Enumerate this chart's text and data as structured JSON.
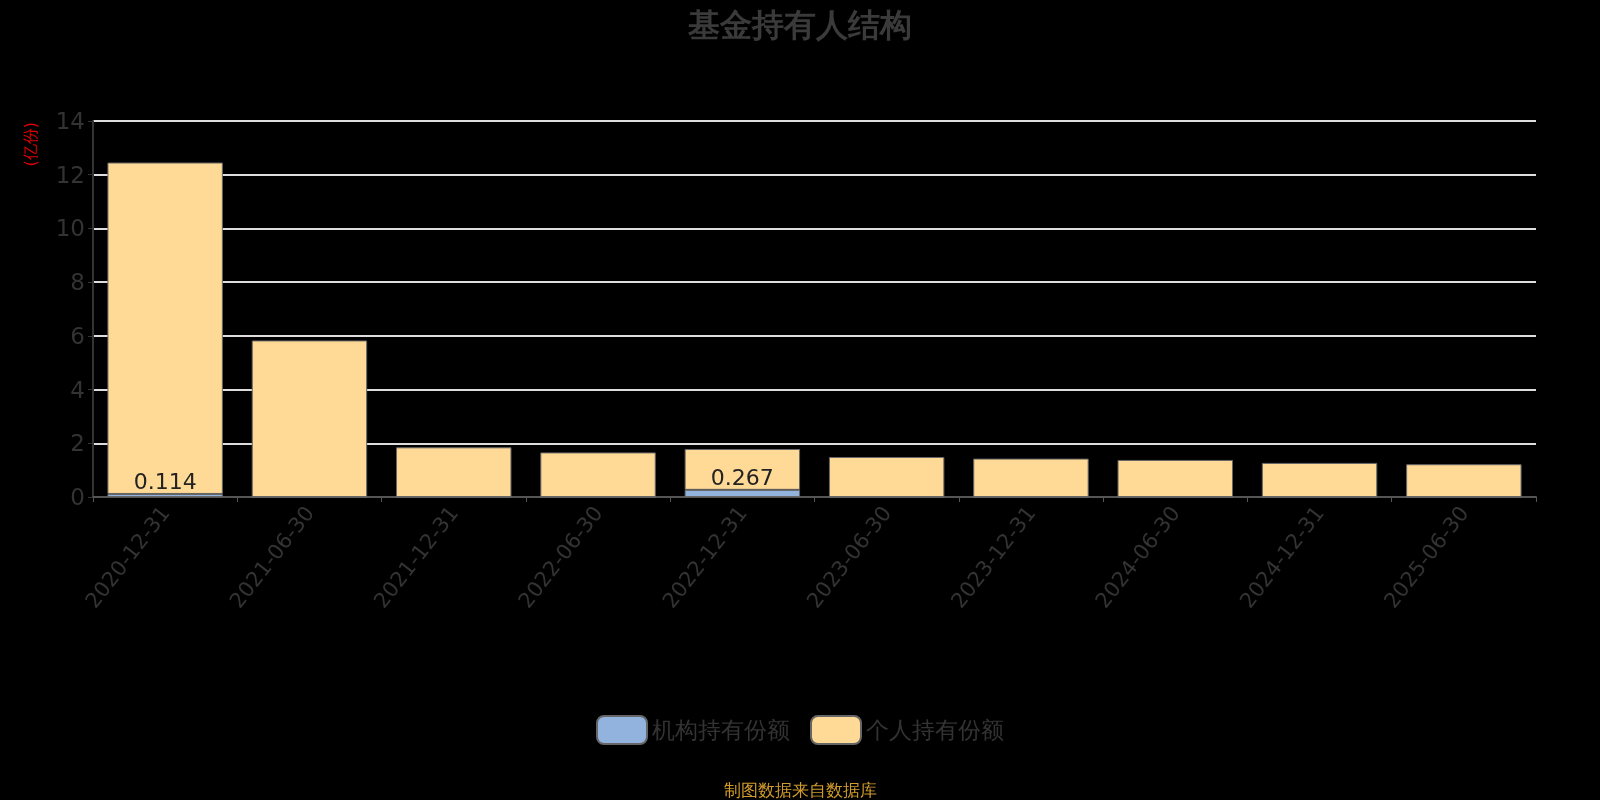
{
  "chart_data": {
    "type": "bar",
    "title": "基金持有人结构",
    "ylabel": "(亿份)",
    "categories": [
      "2020-12-31",
      "2021-06-30",
      "2021-12-31",
      "2022-06-30",
      "2022-12-31",
      "2023-06-30",
      "2023-12-31",
      "2024-06-30",
      "2024-12-31",
      "2025-06-30"
    ],
    "series": [
      {
        "name": "机构持有份额",
        "color": "#93b3df",
        "values": [
          0.114,
          0,
          0,
          0,
          0.267,
          0,
          0,
          0,
          0,
          0
        ],
        "value_labels": [
          "0.114",
          null,
          null,
          null,
          "0.267",
          null,
          null,
          null,
          null,
          null
        ]
      },
      {
        "name": "个人持有份额",
        "color": "#ffd996",
        "values": [
          12.34,
          5.83,
          1.85,
          1.66,
          1.52,
          1.49,
          1.43,
          1.38,
          1.27,
          1.22
        ]
      }
    ],
    "stacked": true,
    "ylim": [
      0,
      14
    ],
    "yticks": [
      0,
      2,
      4,
      6,
      8,
      10,
      12,
      14
    ],
    "grid": "y",
    "legend": "bottom",
    "annotations": [
      "制图数据来自数据库"
    ]
  }
}
